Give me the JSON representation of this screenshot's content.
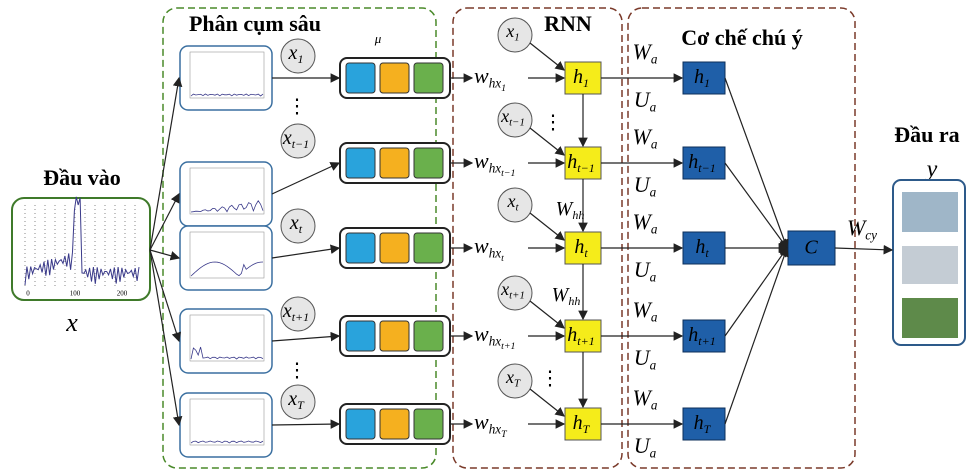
{
  "input": {
    "title": "Đầu vào",
    "var": "x",
    "ticks": [
      "0",
      "100",
      "200"
    ]
  },
  "clustering": {
    "title": "Phân cụm sâu",
    "mu": "μ"
  },
  "rnn": {
    "title": "RNN",
    "w_hh": [
      {
        "base": "W",
        "sub": "hh"
      },
      {
        "base": "W",
        "sub": "hh"
      }
    ]
  },
  "attention": {
    "title": "Cơ chế chú ý",
    "c": "C"
  },
  "output": {
    "title": "Đầu ra",
    "var": "y",
    "w_cy": {
      "base": "W",
      "sub": "cy"
    }
  },
  "ellipses": [
    "⋮",
    "⋮",
    "⋮",
    "⋮"
  ],
  "rows": [
    {
      "x": {
        "base": "x",
        "sub": "1"
      },
      "w": {
        "base": "w",
        "sub": "hx",
        "subsub": "1"
      },
      "h": {
        "base": "h",
        "sub": "1"
      },
      "wa": {
        "base": "W",
        "sub": "a"
      },
      "ua": {
        "base": "U",
        "sub": "a"
      },
      "ha": {
        "base": "h",
        "sub": "1"
      }
    },
    {
      "x": {
        "base": "x",
        "sub": "t−1"
      },
      "w": {
        "base": "w",
        "sub": "hx",
        "subsub": "t−1"
      },
      "h": {
        "base": "h",
        "sub": "t−1"
      },
      "wa": {
        "base": "W",
        "sub": "a"
      },
      "ua": {
        "base": "U",
        "sub": "a"
      },
      "ha": {
        "base": "h",
        "sub": "t−1"
      }
    },
    {
      "x": {
        "base": "x",
        "sub": "t"
      },
      "w": {
        "base": "w",
        "sub": "hx",
        "subsub": "t"
      },
      "h": {
        "base": "h",
        "sub": "t"
      },
      "wa": {
        "base": "W",
        "sub": "a"
      },
      "ua": {
        "base": "U",
        "sub": "a"
      },
      "ha": {
        "base": "h",
        "sub": "t"
      }
    },
    {
      "x": {
        "base": "x",
        "sub": "t+1"
      },
      "w": {
        "base": "w",
        "sub": "hx",
        "subsub": "t+1"
      },
      "h": {
        "base": "h",
        "sub": "t+1"
      },
      "wa": {
        "base": "W",
        "sub": "a"
      },
      "ua": {
        "base": "U",
        "sub": "a"
      },
      "ha": {
        "base": "h",
        "sub": "t+1"
      }
    },
    {
      "x": {
        "base": "x",
        "sub": "T"
      },
      "w": {
        "base": "w",
        "sub": "hx",
        "subsub": "T"
      },
      "h": {
        "base": "h",
        "sub": "T"
      },
      "wa": {
        "base": "W",
        "sub": "a"
      },
      "ua": {
        "base": "U",
        "sub": "a"
      },
      "ha": {
        "base": "h",
        "sub": "T"
      }
    }
  ]
}
